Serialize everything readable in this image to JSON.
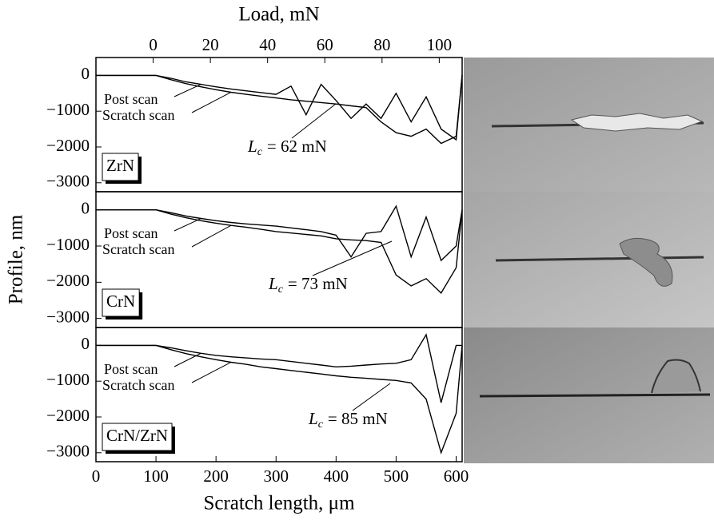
{
  "chart_data": [
    {
      "type": "line",
      "sample": "ZrN",
      "x2label": "Load, mN",
      "x2lim": [
        -20,
        108
      ],
      "x2ticks": [
        0,
        20,
        40,
        60,
        80,
        100
      ],
      "xlim": [
        0,
        610
      ],
      "ylim": [
        -3250,
        500
      ],
      "yticks": [
        0,
        {
          "value": -1000,
          "label": "−1000"
        },
        {
          "value": -2000,
          "label": "−2000"
        },
        {
          "value": -3000,
          "label": "−3000"
        }
      ],
      "x": [
        0,
        25,
        50,
        75,
        100,
        125,
        150,
        175,
        200,
        225,
        250,
        275,
        300,
        325,
        350,
        375,
        400,
        425,
        450,
        475,
        500,
        525,
        550,
        575,
        600,
        610
      ],
      "series": [
        {
          "name": "Post scan",
          "color": "#000000",
          "values": [
            0,
            0,
            0,
            0,
            0,
            -80,
            -180,
            -250,
            -320,
            -380,
            -430,
            -480,
            -530,
            -300,
            -1100,
            -250,
            -700,
            -1200,
            -800,
            -1200,
            -500,
            -1300,
            -600,
            -1500,
            -1800,
            0
          ]
        },
        {
          "name": "Scratch scan",
          "color": "#000000",
          "values": [
            0,
            0,
            0,
            0,
            0,
            -120,
            -230,
            -320,
            -400,
            -470,
            -530,
            -580,
            -630,
            -680,
            -720,
            -760,
            -800,
            -850,
            -900,
            -1300,
            -1600,
            -1700,
            -1500,
            -1900,
            -1700,
            0
          ]
        }
      ],
      "critical_load": {
        "symbol": "L",
        "subscript": "c",
        "text": "= 62 mN"
      }
    },
    {
      "type": "line",
      "sample": "CrN",
      "ylabel": "Profile, nm",
      "xlim": [
        0,
        610
      ],
      "ylim": [
        -3250,
        500
      ],
      "yticks": [
        0,
        {
          "value": -1000,
          "label": "−1000"
        },
        {
          "value": -2000,
          "label": "−2000"
        },
        {
          "value": -3000,
          "label": "−3000"
        }
      ],
      "x": [
        0,
        25,
        50,
        75,
        100,
        125,
        150,
        175,
        200,
        225,
        250,
        275,
        300,
        325,
        350,
        375,
        400,
        425,
        450,
        475,
        500,
        525,
        550,
        575,
        600,
        610
      ],
      "series": [
        {
          "name": "Post scan",
          "color": "#000000",
          "values": [
            0,
            0,
            0,
            0,
            0,
            -80,
            -170,
            -240,
            -300,
            -350,
            -390,
            -420,
            -450,
            -500,
            -550,
            -600,
            -700,
            -1300,
            -650,
            -600,
            100,
            -1300,
            -200,
            -1400,
            -1000,
            0
          ]
        },
        {
          "name": "Scratch scan",
          "color": "#000000",
          "values": [
            0,
            0,
            0,
            0,
            0,
            -120,
            -220,
            -300,
            -370,
            -430,
            -480,
            -540,
            -600,
            -640,
            -680,
            -720,
            -800,
            -830,
            -850,
            -900,
            -1800,
            -2100,
            -1900,
            -2300,
            -1600,
            0
          ]
        }
      ],
      "critical_load": {
        "symbol": "L",
        "subscript": "c",
        "text": "= 73 mN"
      }
    },
    {
      "type": "line",
      "sample": "CrN/ZrN",
      "xlabel": "Scratch length, μm",
      "xlim": [
        0,
        610
      ],
      "xticks": [
        0,
        100,
        200,
        300,
        400,
        500,
        600
      ],
      "ylim": [
        -3250,
        500
      ],
      "yticks": [
        0,
        {
          "value": -1000,
          "label": "−1000"
        },
        {
          "value": -2000,
          "label": "−2000"
        },
        {
          "value": -3000,
          "label": "−3000"
        }
      ],
      "x": [
        0,
        25,
        50,
        75,
        100,
        125,
        150,
        175,
        200,
        225,
        250,
        275,
        300,
        325,
        350,
        375,
        400,
        425,
        450,
        475,
        500,
        525,
        550,
        575,
        600,
        610
      ],
      "series": [
        {
          "name": "Post scan",
          "color": "#000000",
          "values": [
            0,
            0,
            0,
            0,
            0,
            -70,
            -150,
            -220,
            -280,
            -320,
            -350,
            -380,
            -400,
            -450,
            -500,
            -550,
            -600,
            -580,
            -550,
            -520,
            -500,
            -400,
            300,
            -1600,
            0,
            0
          ]
        },
        {
          "name": "Scratch scan",
          "color": "#000000",
          "values": [
            0,
            0,
            0,
            0,
            0,
            -120,
            -230,
            -320,
            -400,
            -470,
            -530,
            -600,
            -650,
            -700,
            -750,
            -800,
            -850,
            -890,
            -920,
            -950,
            -980,
            -1050,
            -1500,
            -3000,
            -1900,
            0
          ]
        }
      ],
      "critical_load": {
        "symbol": "L",
        "subscript": "c",
        "text": "= 85 mN"
      }
    }
  ]
}
